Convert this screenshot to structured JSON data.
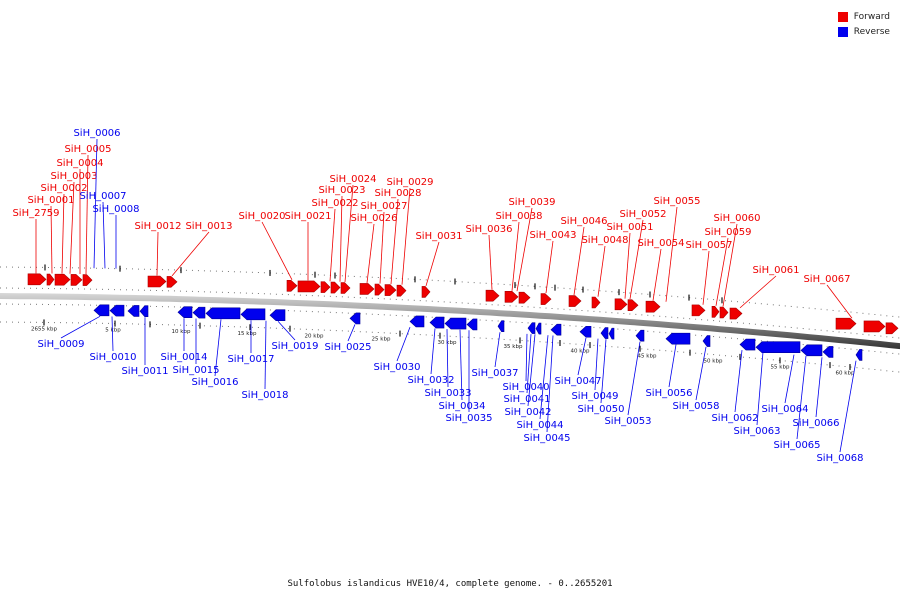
{
  "caption": "Sulfolobus islandicus HVE10/4, complete genome. - 0..2655201",
  "legend": {
    "forward": {
      "label": "Forward",
      "color": "#ee0000"
    },
    "reverse": {
      "label": "Reverse",
      "color": "#0000ee"
    }
  },
  "scale_labels": [
    "2655 kbp",
    "5 kbp",
    "10 kbp",
    "15 kbp",
    "20 kbp",
    "25 kbp",
    "30 kbp",
    "35 kbp",
    "40 kbp",
    "45 kbp",
    "50 kbp",
    "55 kbp",
    "60 kbp"
  ],
  "forward_genes": [
    "SiH_2759",
    "SiH_0001",
    "SiH_0002",
    "SiH_0003",
    "SiH_0004",
    "SiH_0005",
    "SiH_0012",
    "SiH_0013",
    "SiH_0020",
    "SiH_0021",
    "SiH_0022",
    "SiH_0023",
    "SiH_0024",
    "SiH_0026",
    "SiH_0027",
    "SiH_0028",
    "SiH_0029",
    "SiH_0031",
    "SiH_0036",
    "SiH_0038",
    "SiH_0039",
    "SiH_0043",
    "SiH_0046",
    "SiH_0048",
    "SiH_0051",
    "SiH_0052",
    "SiH_0054",
    "SiH_0055",
    "SiH_0057",
    "SiH_0059",
    "SiH_0060",
    "SiH_0061",
    "SiH_0067"
  ],
  "reverse_genes": [
    "SiH_0006",
    "SiH_0007",
    "SiH_0008",
    "SiH_0009",
    "SiH_0010",
    "SiH_0011",
    "SiH_0014",
    "SiH_0015",
    "SiH_0016",
    "SiH_0017",
    "SiH_0018",
    "SiH_0019",
    "SiH_0025",
    "SiH_0030",
    "SiH_0032",
    "SiH_0033",
    "SiH_0034",
    "SiH_0035",
    "SiH_0037",
    "SiH_0040",
    "SiH_0041",
    "SiH_0042",
    "SiH_0044",
    "SiH_0045",
    "SiH_0047",
    "SiH_0049",
    "SiH_0050",
    "SiH_0053",
    "SiH_0056",
    "SiH_0058",
    "SiH_0062",
    "SiH_0063",
    "SiH_0064",
    "SiH_0065",
    "SiH_0066",
    "SiH_0068"
  ]
}
